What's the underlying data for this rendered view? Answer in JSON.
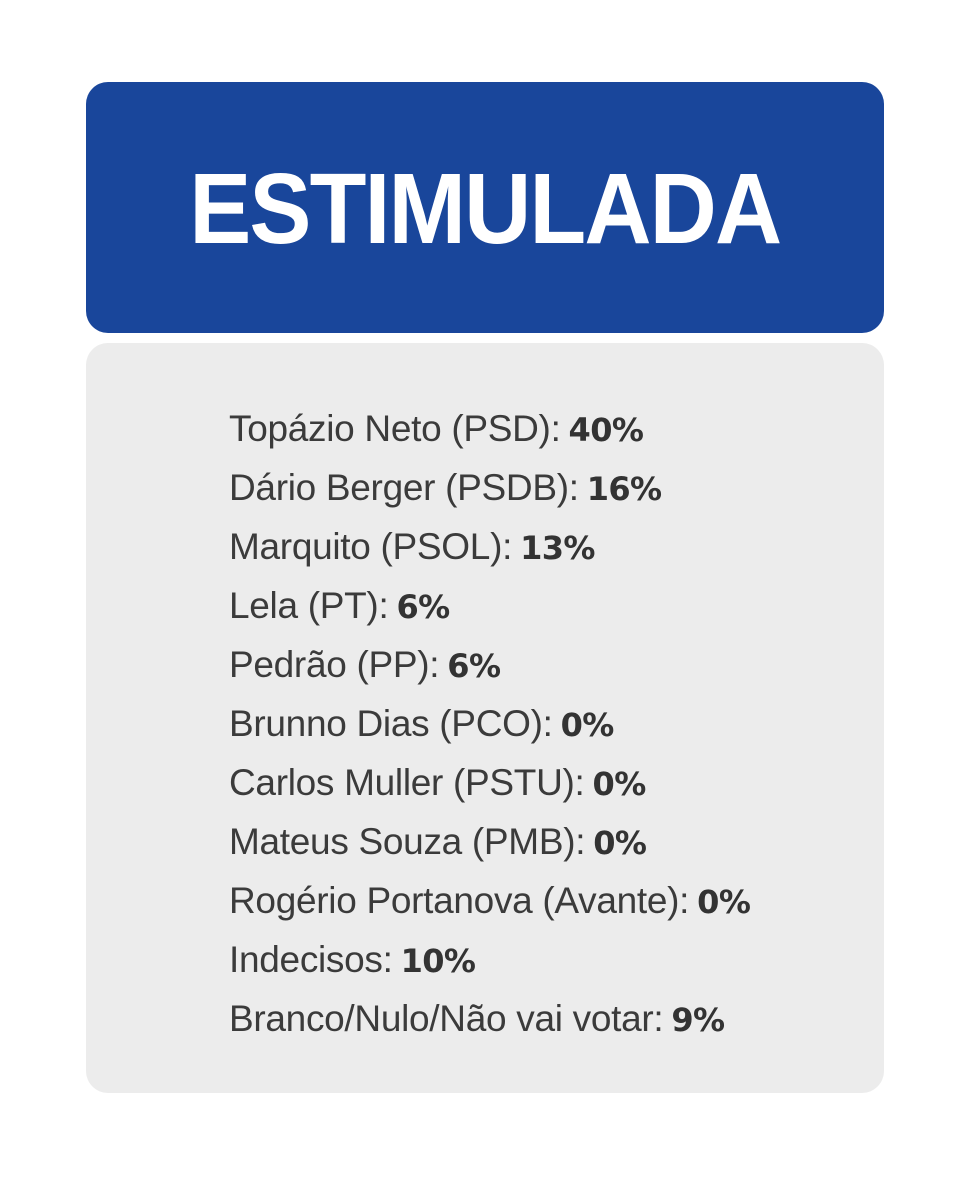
{
  "header": {
    "title": "ESTIMULADA"
  },
  "results": [
    {
      "label": "Topázio Neto (PSD):",
      "value": "40%"
    },
    {
      "label": "Dário Berger (PSDB):",
      "value": "16%"
    },
    {
      "label": "Marquito (PSOL):",
      "value": "13%"
    },
    {
      "label": "Lela (PT):",
      "value": "6%"
    },
    {
      "label": "Pedrão (PP):",
      "value": "6%"
    },
    {
      "label": "Brunno Dias (PCO):",
      "value": "0%"
    },
    {
      "label": "Carlos Muller (PSTU):",
      "value": "0%"
    },
    {
      "label": "Mateus Souza (PMB):",
      "value": "0%"
    },
    {
      "label": "Rogério Portanova (Avante):",
      "value": "0%"
    },
    {
      "label": "Indecisos:",
      "value": "10%"
    },
    {
      "label": "Branco/Nulo/Não vai votar:",
      "value": "9%"
    }
  ],
  "colors": {
    "header_background": "#19469b",
    "panel_background": "#ececec",
    "text": "#3b3b3b"
  }
}
